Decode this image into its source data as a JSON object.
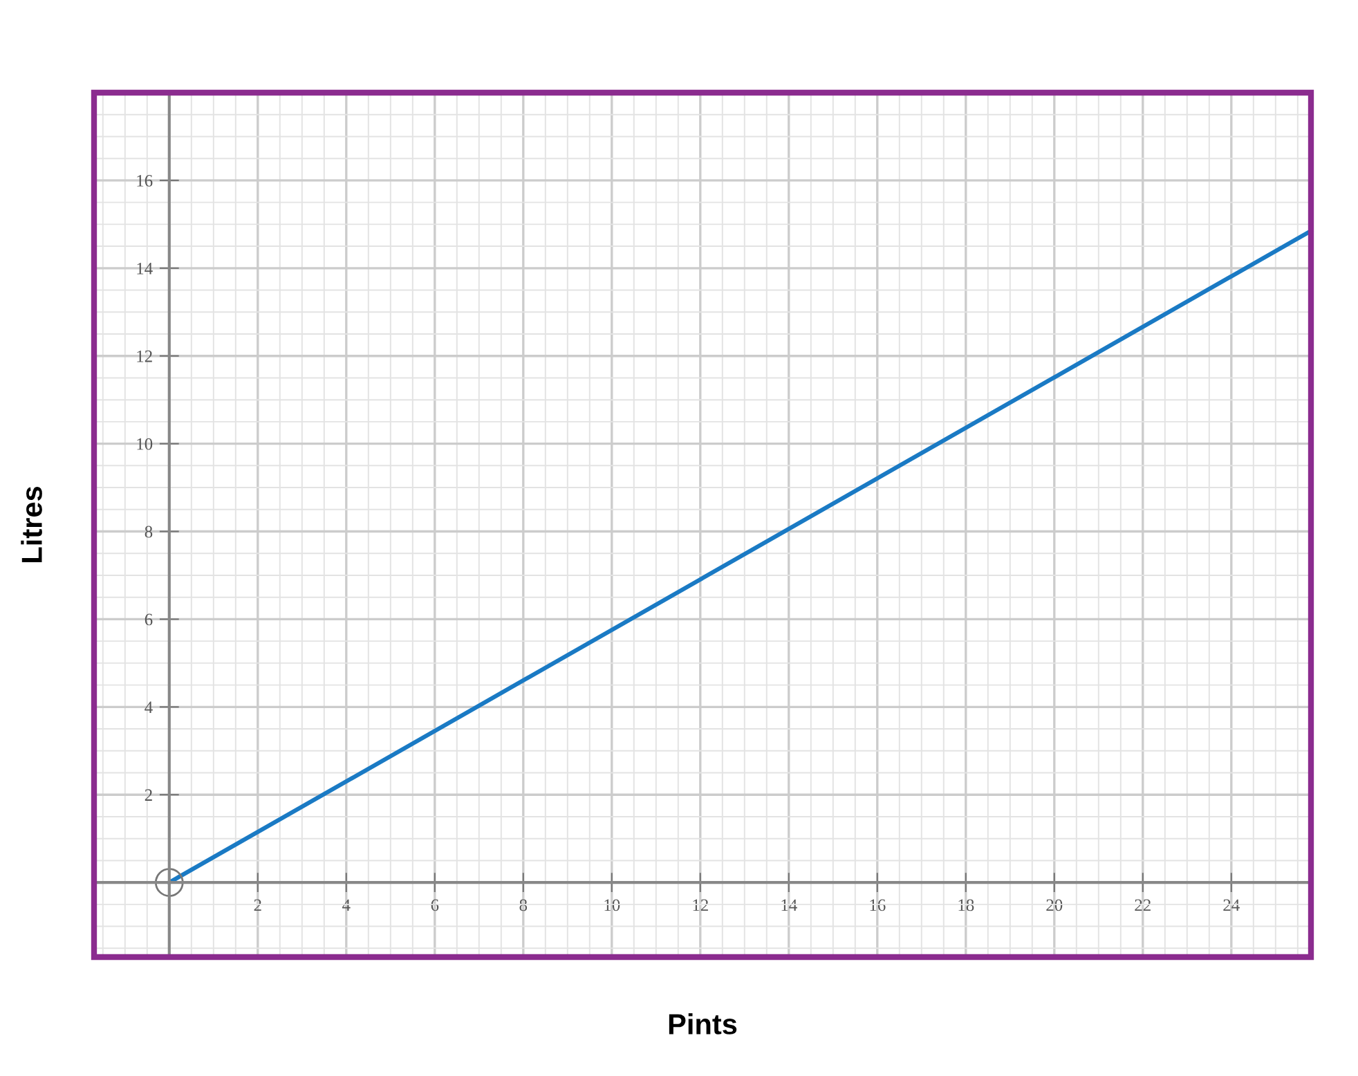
{
  "chart_data": {
    "type": "line",
    "xlabel": "Pints",
    "ylabel": "Litres",
    "x": [
      0,
      25.8
    ],
    "series": [
      {
        "color": "#1a7ac4",
        "values": [
          0,
          14.85
        ]
      }
    ],
    "xlim": [
      -1.7,
      25.8
    ],
    "ylim": [
      -1.7,
      18
    ],
    "xticks": [
      2,
      4,
      6,
      8,
      10,
      12,
      14,
      16,
      18,
      20,
      22,
      24
    ],
    "yticks": [
      2,
      4,
      6,
      8,
      10,
      12,
      14,
      16
    ],
    "grid": true,
    "legend": false,
    "marker": "circle",
    "line_style": "solid"
  }
}
